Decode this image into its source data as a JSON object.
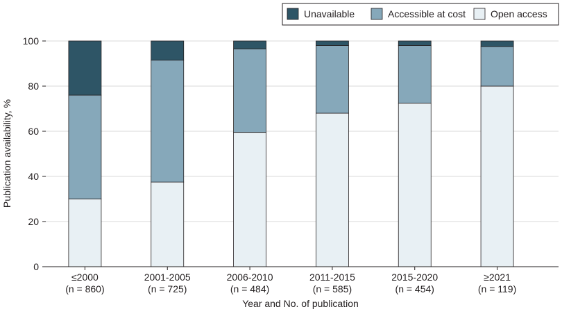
{
  "chart_data": {
    "type": "bar",
    "stacked": true,
    "xlabel": "Year and No. of publication",
    "ylabel": "Publication availability, %",
    "ylim": [
      0,
      100
    ],
    "yticks": [
      0,
      20,
      40,
      60,
      80,
      100
    ],
    "grid": true,
    "legend_position": "top-right",
    "categories": [
      "≤2000",
      "2001-2005",
      "2006-2010",
      "2011-2015",
      "2015-2020",
      "≥2021"
    ],
    "category_counts": [
      "(n = 860)",
      "(n = 725)",
      "(n = 484)",
      "(n = 585)",
      "(n = 454)",
      "(n = 119)"
    ],
    "series": [
      {
        "name": "Open access",
        "color": "#e8f0f4",
        "values": [
          30,
          37.5,
          59.5,
          68,
          72.5,
          80
        ]
      },
      {
        "name": "Accessible at cost",
        "color": "#86a8ba",
        "values": [
          46,
          54,
          37,
          30,
          25.5,
          17.5
        ]
      },
      {
        "name": "Unavailable",
        "color": "#2e5566",
        "values": [
          24,
          8.5,
          3.5,
          2,
          2,
          2.5
        ]
      }
    ],
    "legend_order": [
      "Unavailable",
      "Accessible at cost",
      "Open access"
    ]
  }
}
